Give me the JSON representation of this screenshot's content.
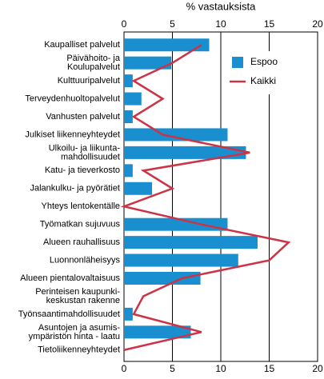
{
  "chart_data": {
    "type": "bar",
    "orientation": "horizontal",
    "title": "% vastauksista",
    "categories": [
      "Kaupalliset palvelut",
      "Päivähoito- ja\nKoulupalvelut",
      "Kulttuuripalvelut",
      "Terveydenhuoltopalvelut",
      "Vanhusten palvelut",
      "Julkiset liikenneyhteydet",
      "Ulkoilu- ja liikunta-\nmahdollisuudet",
      "Katu- ja tieverkosto",
      "Jalankulku- ja pyörätiet",
      "Yhteys lentokentälle",
      "Työmatkan sujuvuus",
      "Alueen rauhallisuus",
      "Luonnonläheisyys",
      "Alueen pientalovaltaisuus",
      "Perinteisen kaupunki-\nkeskustan rakenne",
      "Työnsaantimahdollisuudet",
      "Asuntojen ja asumis-\nympäristön hinta - laatu",
      "Tietoliikenneyhteydet"
    ],
    "series": [
      {
        "name": "Espoo",
        "type": "bar",
        "color": "#1a8fd0",
        "values": [
          8.8,
          4.9,
          0.9,
          1.8,
          0.9,
          10.7,
          12.6,
          0.9,
          2.9,
          0,
          10.7,
          13.8,
          11.8,
          7.9,
          0,
          0.9,
          6.9,
          0
        ]
      },
      {
        "name": "Kaikki",
        "type": "line",
        "color": "#cc3344",
        "values": [
          8,
          5,
          1,
          4,
          1,
          4,
          13,
          2,
          5,
          0,
          8,
          17,
          15,
          6,
          2,
          1,
          8,
          0
        ]
      }
    ],
    "xlim": [
      0,
      20
    ],
    "xticks": [
      0,
      5,
      10,
      15,
      20
    ],
    "grid": true,
    "legend": "upper right"
  }
}
